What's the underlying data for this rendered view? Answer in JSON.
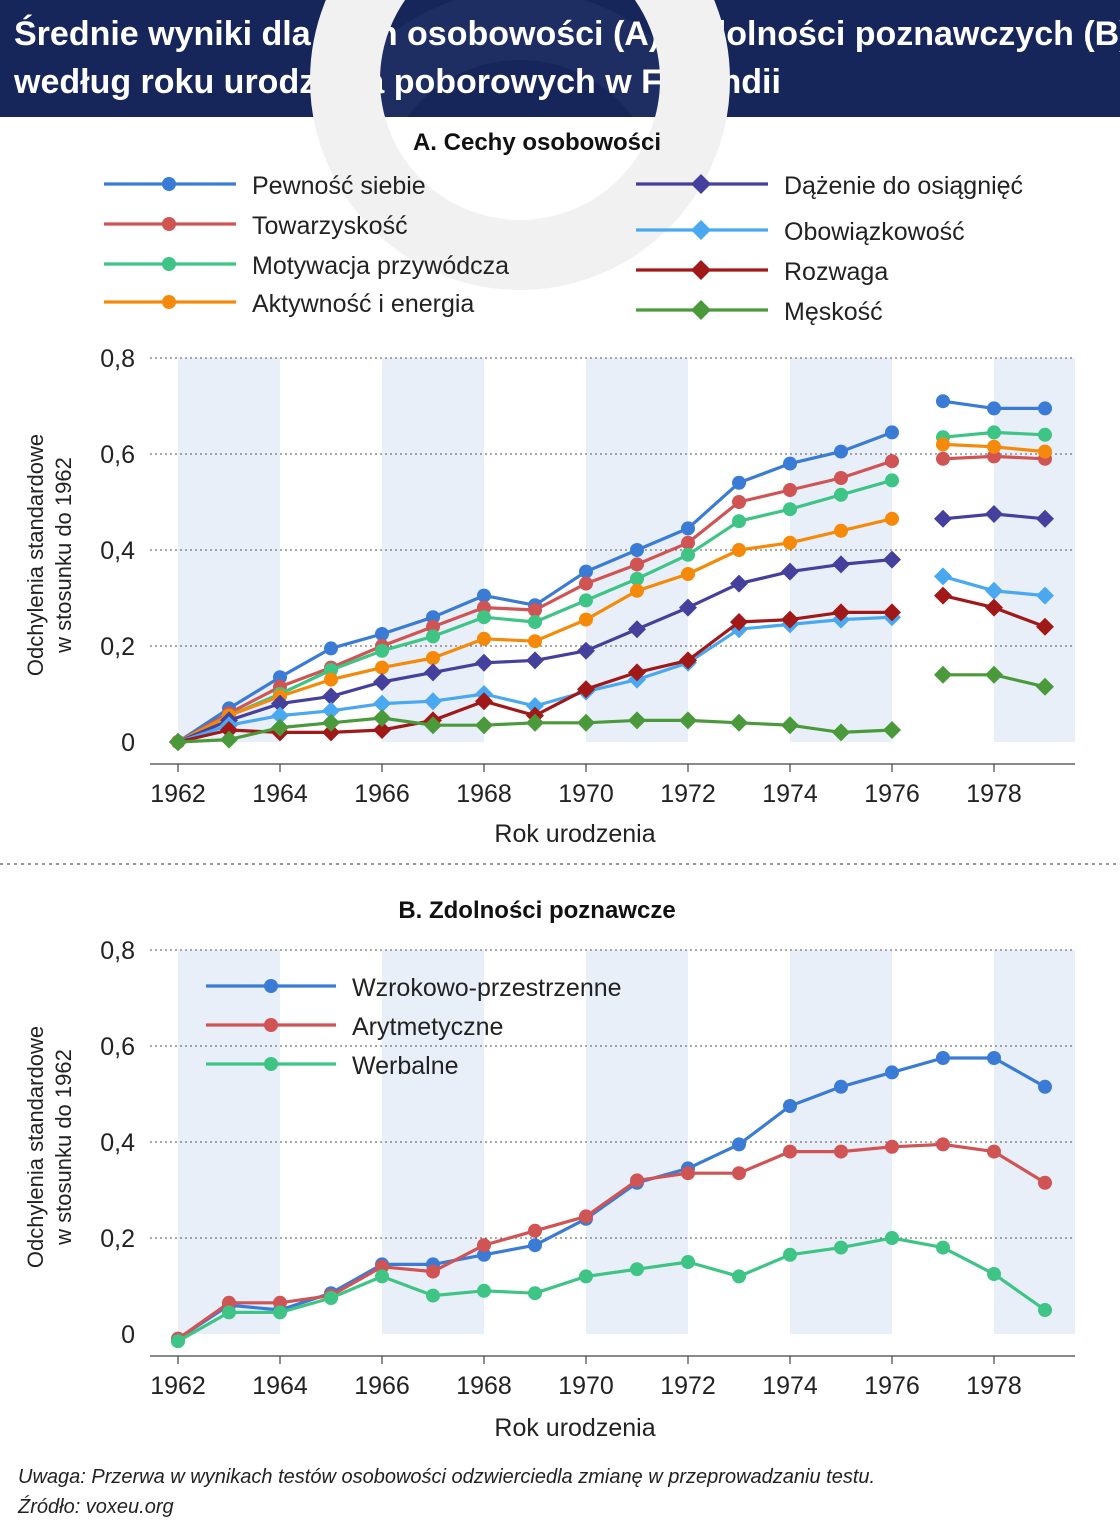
{
  "header": {
    "title_line1": "Średnie wyniki dla cech osobowości (A) i zdolności poznawczych (B)",
    "title_line2": "według roku urodzenia poborowych w Finlandii"
  },
  "footer": {
    "note": "Uwaga: Przerwa w wynikach testów osobowości odzwierciedla zmianę w przeprowadzaniu testu.",
    "source": "Źródło: voxeu.org"
  },
  "colors": {
    "header_bg": "#16255a",
    "band": "#e9eff9",
    "grid": "#555555"
  },
  "chart_data": [
    {
      "type": "line",
      "title": "A. Cechy osobowości",
      "xlabel": "Rok urodzenia",
      "ylabel": "Odchylenia standardowe w stosunku do 1962",
      "xlim": [
        1962,
        1979
      ],
      "ylim": [
        0,
        0.8
      ],
      "xticks": [
        "1962",
        "1964",
        "1966",
        "1968",
        "1970",
        "1972",
        "1974",
        "1976",
        "1978"
      ],
      "yticks": [
        "0",
        "0,2",
        "0,4",
        "0,6",
        "0,8"
      ],
      "grid": "horizontal dashed",
      "legend": "top, two columns",
      "series": [
        {
          "name": "Pewność siebie",
          "color": "#3a7bd5",
          "marker": "circle",
          "x": [
            1962,
            1963,
            1964,
            1965,
            1966,
            1967,
            1968,
            1969,
            1970,
            1971,
            1972,
            1973,
            1974,
            1975,
            1976,
            1977,
            1978,
            1979
          ],
          "values": [
            0.0,
            0.07,
            0.135,
            0.195,
            0.225,
            0.26,
            0.305,
            0.285,
            0.355,
            0.4,
            0.445,
            0.54,
            0.58,
            0.605,
            0.645,
            0.71,
            0.695,
            0.695
          ]
        },
        {
          "name": "Towarzyskość",
          "color": "#d05454",
          "marker": "circle",
          "x": [
            1962,
            1963,
            1964,
            1965,
            1966,
            1967,
            1968,
            1969,
            1970,
            1971,
            1972,
            1973,
            1974,
            1975,
            1976,
            1977,
            1978,
            1979
          ],
          "values": [
            0.0,
            0.06,
            0.115,
            0.155,
            0.2,
            0.24,
            0.28,
            0.275,
            0.33,
            0.37,
            0.415,
            0.5,
            0.525,
            0.55,
            0.585,
            0.59,
            0.595,
            0.59
          ]
        },
        {
          "name": "Motywacja przywódcza",
          "color": "#3ec484",
          "marker": "circle",
          "x": [
            1962,
            1963,
            1964,
            1965,
            1966,
            1967,
            1968,
            1969,
            1970,
            1971,
            1972,
            1973,
            1974,
            1975,
            1976,
            1977,
            1978,
            1979
          ],
          "values": [
            0.0,
            0.055,
            0.1,
            0.15,
            0.19,
            0.22,
            0.26,
            0.25,
            0.295,
            0.34,
            0.39,
            0.46,
            0.485,
            0.515,
            0.545,
            0.635,
            0.645,
            0.64
          ]
        },
        {
          "name": "Aktywność i energia",
          "color": "#f58a0a",
          "marker": "circle",
          "x": [
            1962,
            1963,
            1964,
            1965,
            1966,
            1967,
            1968,
            1969,
            1970,
            1971,
            1972,
            1973,
            1974,
            1975,
            1976,
            1977,
            1978,
            1979
          ],
          "values": [
            0.0,
            0.055,
            0.095,
            0.13,
            0.155,
            0.175,
            0.215,
            0.21,
            0.255,
            0.315,
            0.35,
            0.4,
            0.415,
            0.44,
            0.465,
            0.62,
            0.615,
            0.605
          ]
        },
        {
          "name": "Dążenie do osiągnięć",
          "color": "#45409c",
          "marker": "diamond",
          "x": [
            1962,
            1963,
            1964,
            1965,
            1966,
            1967,
            1968,
            1969,
            1970,
            1971,
            1972,
            1973,
            1974,
            1975,
            1976,
            1977,
            1978,
            1979
          ],
          "values": [
            0.0,
            0.045,
            0.08,
            0.095,
            0.125,
            0.145,
            0.165,
            0.17,
            0.19,
            0.235,
            0.28,
            0.33,
            0.355,
            0.37,
            0.38,
            0.465,
            0.475,
            0.465
          ]
        },
        {
          "name": "Obowiązkowość",
          "color": "#4aa8f0",
          "marker": "diamond",
          "x": [
            1962,
            1963,
            1964,
            1965,
            1966,
            1967,
            1968,
            1969,
            1970,
            1971,
            1972,
            1973,
            1974,
            1975,
            1976,
            1977,
            1978,
            1979
          ],
          "values": [
            0.0,
            0.035,
            0.055,
            0.065,
            0.08,
            0.085,
            0.1,
            0.075,
            0.105,
            0.13,
            0.165,
            0.235,
            0.245,
            0.255,
            0.26,
            0.345,
            0.315,
            0.305
          ]
        },
        {
          "name": "Rozwaga",
          "color": "#a01818",
          "marker": "diamond",
          "x": [
            1962,
            1963,
            1964,
            1965,
            1966,
            1967,
            1968,
            1969,
            1970,
            1971,
            1972,
            1973,
            1974,
            1975,
            1976,
            1977,
            1978,
            1979
          ],
          "values": [
            0.0,
            0.025,
            0.02,
            0.02,
            0.025,
            0.045,
            0.085,
            0.055,
            0.11,
            0.145,
            0.17,
            0.25,
            0.255,
            0.27,
            0.27,
            0.305,
            0.28,
            0.24
          ]
        },
        {
          "name": "Męskość",
          "color": "#4a9a3c",
          "marker": "diamond",
          "x": [
            1962,
            1963,
            1964,
            1965,
            1966,
            1967,
            1968,
            1969,
            1970,
            1971,
            1972,
            1973,
            1974,
            1975,
            1976,
            1977,
            1978,
            1979
          ],
          "values": [
            0.0,
            0.005,
            0.03,
            0.04,
            0.05,
            0.035,
            0.035,
            0.04,
            0.04,
            0.045,
            0.045,
            0.04,
            0.035,
            0.02,
            0.025,
            0.14,
            0.14,
            0.115
          ]
        }
      ]
    },
    {
      "type": "line",
      "title": "B. Zdolności poznawcze",
      "xlabel": "Rok urodzenia",
      "ylabel": "Odchylenia standardowe w stosunku do 1962",
      "xlim": [
        1962,
        1979
      ],
      "ylim": [
        0,
        0.8
      ],
      "xticks": [
        "1962",
        "1964",
        "1966",
        "1968",
        "1970",
        "1972",
        "1974",
        "1976",
        "1978"
      ],
      "yticks": [
        "0",
        "0,2",
        "0,4",
        "0,6",
        "0,8"
      ],
      "grid": "horizontal dashed",
      "legend": "top-left",
      "series": [
        {
          "name": "Wzrokowo-przestrzenne",
          "color": "#3a7bd5",
          "marker": "circle",
          "x": [
            1962,
            1963,
            1964,
            1965,
            1966,
            1967,
            1968,
            1969,
            1970,
            1971,
            1972,
            1973,
            1974,
            1975,
            1976,
            1977,
            1978,
            1979
          ],
          "values": [
            -0.01,
            0.06,
            0.05,
            0.085,
            0.145,
            0.145,
            0.165,
            0.185,
            0.24,
            0.315,
            0.345,
            0.395,
            0.475,
            0.515,
            0.545,
            0.575,
            0.575,
            0.515
          ]
        },
        {
          "name": "Arytmetyczne",
          "color": "#d05454",
          "marker": "circle",
          "x": [
            1962,
            1963,
            1964,
            1965,
            1966,
            1967,
            1968,
            1969,
            1970,
            1971,
            1972,
            1973,
            1974,
            1975,
            1976,
            1977,
            1978,
            1979
          ],
          "values": [
            -0.01,
            0.065,
            0.065,
            0.08,
            0.14,
            0.13,
            0.185,
            0.215,
            0.245,
            0.32,
            0.335,
            0.335,
            0.38,
            0.38,
            0.39,
            0.395,
            0.38,
            0.315
          ]
        },
        {
          "name": "Werbalne",
          "color": "#3ec484",
          "marker": "circle",
          "x": [
            1962,
            1963,
            1964,
            1965,
            1966,
            1967,
            1968,
            1969,
            1970,
            1971,
            1972,
            1973,
            1974,
            1975,
            1976,
            1977,
            1978,
            1979
          ],
          "values": [
            -0.015,
            0.045,
            0.045,
            0.075,
            0.12,
            0.08,
            0.09,
            0.085,
            0.12,
            0.135,
            0.15,
            0.12,
            0.165,
            0.18,
            0.2,
            0.18,
            0.125,
            0.05
          ]
        }
      ]
    }
  ]
}
